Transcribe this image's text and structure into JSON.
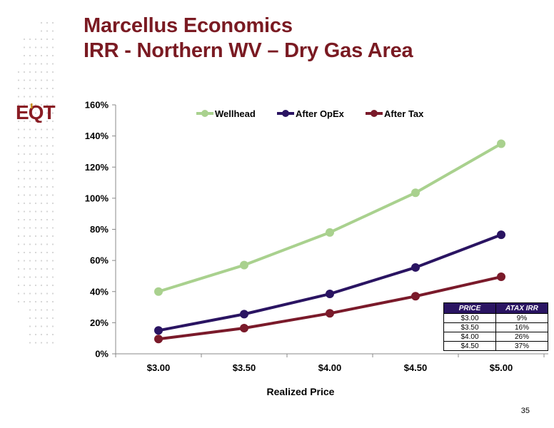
{
  "header": {
    "line1": "Marcellus Economics",
    "line2": "IRR - Northern WV – Dry Gas Area"
  },
  "logo": {
    "text": "EQT",
    "accent_color": "#c8921e",
    "brand_color": "#8a1c24"
  },
  "page_number": "35",
  "chart_data": {
    "type": "line",
    "categories": [
      "$3.00",
      "$3.50",
      "$4.00",
      "$4.50",
      "$5.00"
    ],
    "series": [
      {
        "name": "Wellhead",
        "color": "#a9d18e",
        "values": [
          40,
          57,
          78,
          103.5,
          135
        ]
      },
      {
        "name": "After OpEx",
        "color": "#2a1462",
        "values": [
          15,
          25.5,
          38.5,
          55.5,
          76.5
        ]
      },
      {
        "name": "After Tax",
        "color": "#7a1a2a",
        "values": [
          9.5,
          16.5,
          26,
          37,
          49.5
        ]
      }
    ],
    "yticks": [
      "0%",
      "20%",
      "40%",
      "60%",
      "80%",
      "100%",
      "120%",
      "140%",
      "160%"
    ],
    "ylim": [
      0,
      160
    ],
    "xlabel": "Realized Price",
    "ylabel": "",
    "legend": "top-center",
    "grid": false
  },
  "table": {
    "headers": [
      "PRICE",
      "ATAX IRR"
    ],
    "rows": [
      [
        "$3.00",
        "9%"
      ],
      [
        "$3.50",
        "16%"
      ],
      [
        "$4.00",
        "26%"
      ],
      [
        "$4.50",
        "37%"
      ]
    ]
  }
}
